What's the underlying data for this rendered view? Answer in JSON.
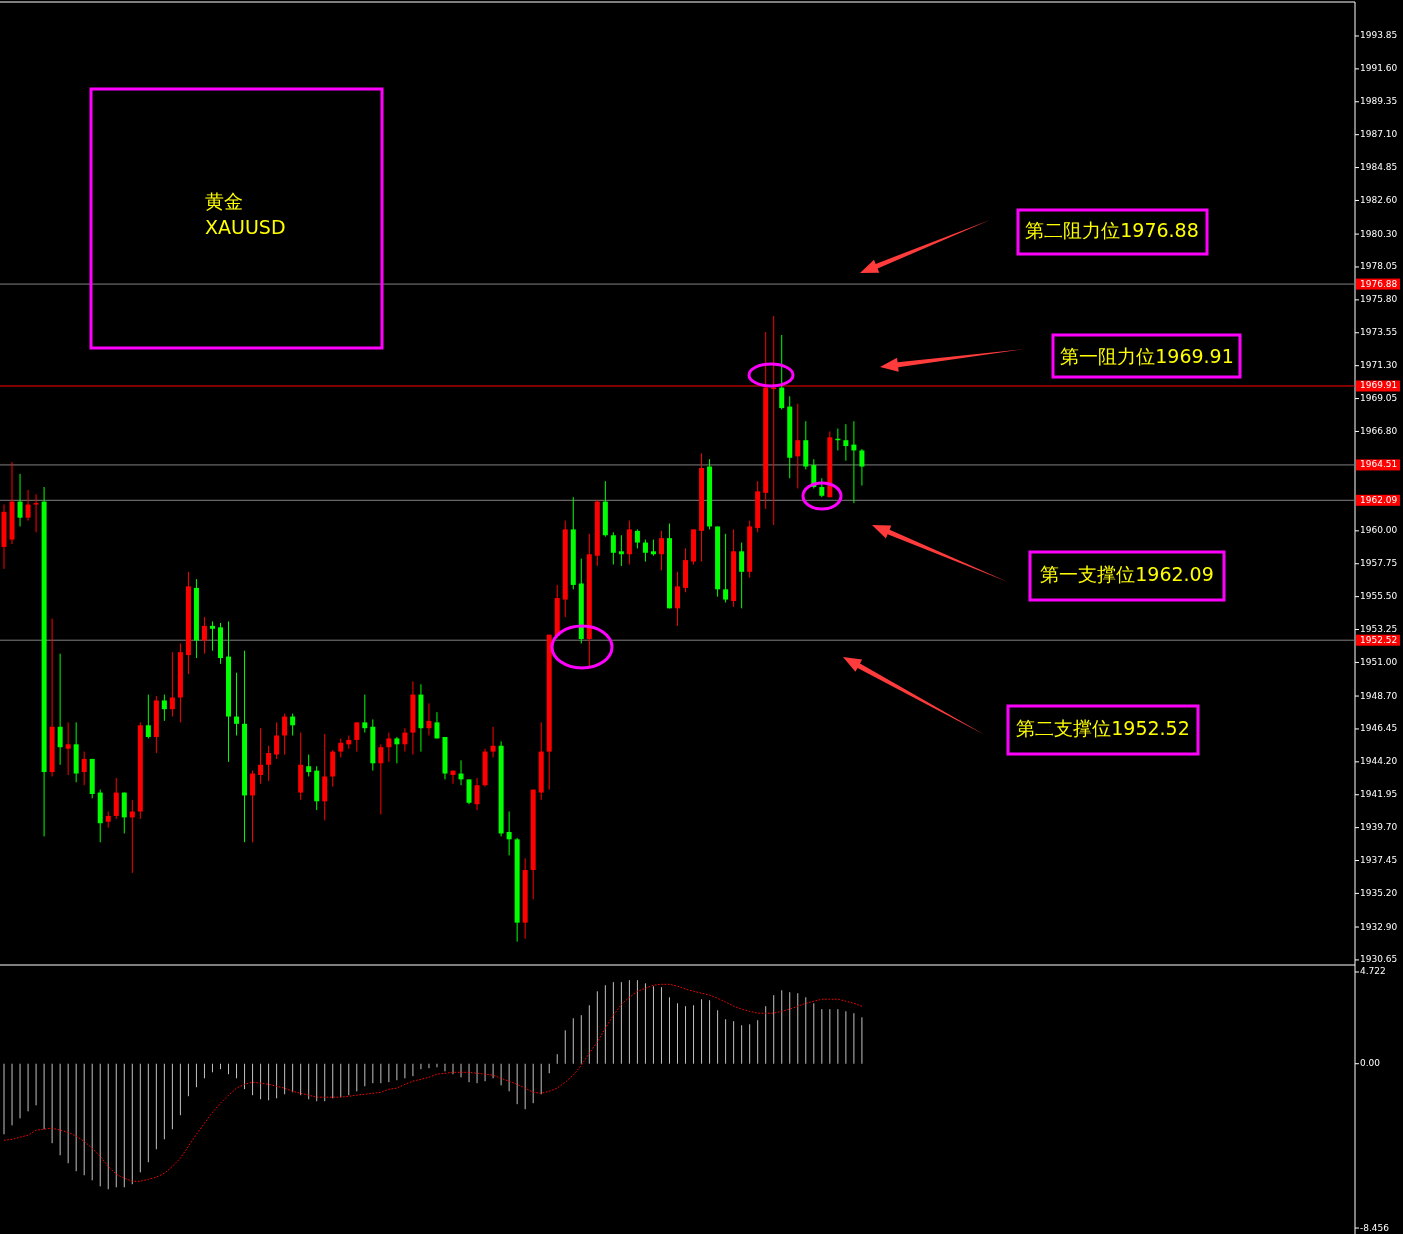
{
  "chart_data": [
    {
      "type": "candlestick",
      "categories": [
        null,
        null,
        null,
        null,
        null,
        null,
        null,
        null,
        null,
        null,
        null,
        null,
        null,
        null,
        null,
        null,
        null,
        null,
        null,
        null,
        null,
        null,
        null,
        null,
        null,
        null,
        null,
        null,
        null,
        null,
        null,
        null,
        null,
        null,
        null,
        null,
        null,
        null,
        null,
        null,
        null,
        null,
        null,
        null,
        null,
        null,
        null,
        null,
        null,
        null,
        null,
        null,
        null,
        null,
        null,
        null,
        null,
        null,
        null,
        null,
        null,
        null,
        null,
        null,
        null,
        null,
        null,
        null,
        null,
        null,
        null,
        null,
        null,
        null,
        null,
        null,
        null,
        null,
        null,
        null,
        null,
        null,
        null,
        null,
        null,
        null,
        null,
        null,
        null,
        null,
        null,
        null,
        null,
        null,
        null,
        null,
        null,
        null,
        null,
        null,
        null,
        null,
        null,
        null,
        null,
        null,
        null,
        null,
        null,
        null,
        null,
        null,
        null,
        null,
        null,
        null,
        null,
        null,
        null,
        null,
        null,
        null,
        null,
        null,
        null,
        null,
        null,
        null,
        null,
        null,
        null,
        null,
        null,
        null,
        null,
        null,
        null,
        null,
        null,
        null,
        null,
        null,
        null,
        null,
        null,
        null,
        null,
        null,
        null,
        null,
        null,
        null,
        null,
        null,
        null,
        null,
        null,
        null,
        null,
        null,
        null,
        null,
        null,
        null,
        null,
        null,
        null,
        null,
        null
      ],
      "ohlc": [
        [
          1958.9,
          1961.8,
          1957.4,
          1961.3
        ],
        [
          1959.4,
          1964.7,
          1959.1,
          1962.0
        ],
        [
          1962.0,
          1963.9,
          1960.3,
          1960.9
        ],
        [
          1960.9,
          1962.8,
          1960.7,
          1961.8
        ],
        [
          1961.8,
          1962.5,
          1959.9,
          1961.9
        ],
        [
          1962.0,
          1963.0,
          1939.1,
          1943.5
        ],
        [
          1943.5,
          1954.0,
          1943.2,
          1946.6
        ],
        [
          1946.6,
          1951.6,
          1944.0,
          1945.2
        ],
        [
          1945.1,
          1946.9,
          1943.3,
          1945.4
        ],
        [
          1945.4,
          1946.9,
          1942.8,
          1943.4
        ],
        [
          1943.5,
          1944.9,
          1942.6,
          1944.4
        ],
        [
          1944.4,
          1944.4,
          1941.7,
          1942.0
        ],
        [
          1942.1,
          1942.3,
          1938.7,
          1940.0
        ],
        [
          1940.1,
          1940.8,
          1939.7,
          1940.5
        ],
        [
          1940.5,
          1943.1,
          1940.3,
          1942.1
        ],
        [
          1942.1,
          1942.1,
          1939.3,
          1940.4
        ],
        [
          1940.4,
          1941.6,
          1936.6,
          1940.8
        ],
        [
          1940.8,
          1946.9,
          1940.3,
          1946.7
        ],
        [
          1946.7,
          1948.8,
          1945.8,
          1945.9
        ],
        [
          1945.9,
          1948.7,
          1944.8,
          1948.4
        ],
        [
          1948.4,
          1948.8,
          1947.0,
          1947.8
        ],
        [
          1947.8,
          1951.7,
          1947.3,
          1948.6
        ],
        [
          1948.6,
          1952.3,
          1946.9,
          1951.7
        ],
        [
          1951.5,
          1957.2,
          1950.2,
          1956.2
        ],
        [
          1956.1,
          1956.7,
          1951.3,
          1952.5
        ],
        [
          1952.5,
          1954.1,
          1951.6,
          1953.5
        ],
        [
          1953.5,
          1953.8,
          1951.8,
          1953.3
        ],
        [
          1953.4,
          1953.7,
          1950.9,
          1951.3
        ],
        [
          1951.4,
          1953.8,
          1944.2,
          1947.3
        ],
        [
          1947.3,
          1950.3,
          1946.0,
          1946.8
        ],
        [
          1946.8,
          1951.8,
          1938.7,
          1941.9
        ],
        [
          1941.9,
          1943.6,
          1938.7,
          1943.4
        ],
        [
          1943.3,
          1946.5,
          1942.7,
          1944.0
        ],
        [
          1944.0,
          1945.3,
          1942.9,
          1944.8
        ],
        [
          1944.7,
          1946.9,
          1944.4,
          1946.0
        ],
        [
          1946.0,
          1947.5,
          1944.7,
          1947.3
        ],
        [
          1947.3,
          1947.5,
          1946.0,
          1946.7
        ],
        [
          1942.1,
          1946.2,
          1941.6,
          1944.0
        ],
        [
          1943.9,
          1944.7,
          1943.2,
          1943.5
        ],
        [
          1943.6,
          1943.9,
          1940.9,
          1941.5
        ],
        [
          1941.5,
          1946.1,
          1940.2,
          1943.2
        ],
        [
          1943.2,
          1945.0,
          1942.5,
          1944.9
        ],
        [
          1944.9,
          1945.8,
          1944.5,
          1945.5
        ],
        [
          1945.4,
          1946.0,
          1945.1,
          1945.7
        ],
        [
          1945.7,
          1946.9,
          1944.9,
          1946.9
        ],
        [
          1946.9,
          1948.8,
          1946.2,
          1946.5
        ],
        [
          1946.6,
          1947.1,
          1943.6,
          1944.1
        ],
        [
          1944.1,
          1945.4,
          1940.6,
          1945.2
        ],
        [
          1945.2,
          1946.2,
          1944.2,
          1945.8
        ],
        [
          1945.8,
          1945.9,
          1944.1,
          1945.4
        ],
        [
          1945.4,
          1946.5,
          1944.9,
          1946.2
        ],
        [
          1946.2,
          1949.7,
          1944.7,
          1948.8
        ],
        [
          1948.8,
          1949.5,
          1944.9,
          1946.5
        ],
        [
          1946.5,
          1948.2,
          1946.0,
          1947.0
        ],
        [
          1946.9,
          1947.6,
          1945.8,
          1945.8
        ],
        [
          1945.9,
          1945.9,
          1943.0,
          1943.4
        ],
        [
          1943.3,
          1943.6,
          1942.7,
          1943.6
        ],
        [
          1943.4,
          1944.3,
          1942.6,
          1943.0
        ],
        [
          1943.0,
          1943.0,
          1941.3,
          1941.4
        ],
        [
          1941.3,
          1943.1,
          1940.9,
          1942.6
        ],
        [
          1942.6,
          1945.1,
          1942.5,
          1944.9
        ],
        [
          1944.9,
          1946.6,
          1944.5,
          1945.3
        ],
        [
          1945.3,
          1945.6,
          1939.1,
          1939.3
        ],
        [
          1939.4,
          1940.8,
          1937.8,
          1938.9
        ],
        [
          1938.9,
          1939.0,
          1931.9,
          1933.2
        ],
        [
          1933.2,
          1937.6,
          1932.1,
          1936.8
        ],
        [
          1936.8,
          1942.3,
          1934.8,
          1942.3
        ],
        [
          1942.1,
          1946.9,
          1941.6,
          1944.9
        ],
        [
          1944.9,
          1952.9,
          1942.3,
          1952.9
        ],
        [
          1952.8,
          1956.3,
          1952.7,
          1955.4
        ],
        [
          1955.3,
          1960.7,
          1954.1,
          1960.1
        ],
        [
          1960.1,
          1962.3,
          1956.0,
          1956.3
        ],
        [
          1956.4,
          1958.1,
          1952.3,
          1952.6
        ],
        [
          1952.6,
          1959.8,
          1950.6,
          1958.4
        ],
        [
          1958.3,
          1962.1,
          1957.6,
          1962.0
        ],
        [
          1962.0,
          1963.4,
          1959.6,
          1959.7
        ],
        [
          1959.7,
          1959.9,
          1957.7,
          1958.5
        ],
        [
          1958.6,
          1959.7,
          1957.6,
          1958.4
        ],
        [
          1958.4,
          1960.7,
          1957.7,
          1960.1
        ],
        [
          1960.0,
          1960.1,
          1958.8,
          1959.2
        ],
        [
          1959.2,
          1959.4,
          1957.9,
          1958.5
        ],
        [
          1958.6,
          1959.4,
          1958.3,
          1958.4
        ],
        [
          1958.4,
          1960.0,
          1957.3,
          1959.5
        ],
        [
          1959.5,
          1960.5,
          1954.7,
          1954.7
        ],
        [
          1954.7,
          1957.2,
          1953.5,
          1956.2
        ],
        [
          1956.1,
          1958.8,
          1955.8,
          1958.0
        ],
        [
          1957.9,
          1960.1,
          1957.7,
          1960.1
        ],
        [
          1960.0,
          1965.3,
          1957.9,
          1964.3
        ],
        [
          1964.4,
          1964.9,
          1960.1,
          1960.3
        ],
        [
          1960.3,
          1960.3,
          1955.5,
          1956.0
        ],
        [
          1956.0,
          1959.8,
          1955.1,
          1955.3
        ],
        [
          1955.2,
          1960.1,
          1954.8,
          1958.6
        ],
        [
          1958.6,
          1959.2,
          1954.7,
          1957.2
        ],
        [
          1957.2,
          1960.7,
          1956.8,
          1960.3
        ],
        [
          1960.2,
          1963.4,
          1959.9,
          1962.7
        ],
        [
          1962.6,
          1973.6,
          1961.5,
          1969.8
        ],
        [
          1969.7,
          1974.7,
          1960.4,
          1969.8
        ],
        [
          1969.8,
          1973.4,
          1968.3,
          1968.4
        ],
        [
          1968.5,
          1969.2,
          1963.6,
          1965.0
        ],
        [
          1965.1,
          1968.7,
          1962.9,
          1966.2
        ],
        [
          1966.2,
          1967.5,
          1964.2,
          1964.4
        ],
        [
          1964.5,
          1964.9,
          1962.9,
          1963.0
        ],
        [
          1963.0,
          1963.6,
          1962.3,
          1962.4
        ],
        [
          1962.3,
          1966.8,
          1962.3,
          1966.4
        ],
        [
          1966.3,
          1967.0,
          1965.5,
          1966.2
        ],
        [
          1966.2,
          1967.3,
          1964.8,
          1965.8
        ],
        [
          1965.9,
          1967.5,
          1961.9,
          1965.5
        ],
        [
          1965.5,
          1965.6,
          1963.1,
          1964.4
        ],
        null,
        null,
        null,
        null,
        null,
        null,
        null,
        null,
        null,
        null,
        null,
        null,
        null,
        null,
        null,
        null,
        null,
        null,
        null,
        null,
        null,
        null,
        null,
        null,
        null,
        null,
        null,
        null,
        null,
        null,
        null,
        null,
        null,
        null,
        null,
        null,
        null,
        null,
        null,
        null,
        null,
        null,
        null,
        null,
        null,
        null,
        null,
        null,
        null,
        null,
        null,
        null,
        null,
        null,
        null,
        null,
        null,
        null,
        null,
        null,
        null
      ],
      "colors": [
        "#ff0000",
        "#ff0000",
        "#00ff00",
        "#ff0000",
        "#ff0000",
        "#00ff00",
        "#ff0000",
        "#00ff00",
        "#ff0000",
        "#00ff00",
        "#ff0000",
        "#00ff00",
        "#00ff00",
        "#ff0000",
        "#ff0000",
        "#00ff00",
        "#ff0000",
        "#ff0000",
        "#00ff00",
        "#ff0000",
        "#00ff00",
        "#ff0000",
        "#ff0000",
        "#ff0000",
        "#00ff00",
        "#ff0000",
        "#00ff00",
        "#00ff00",
        "#00ff00",
        "#00ff00",
        "#00ff00",
        "#ff0000",
        "#ff0000",
        "#ff0000",
        "#ff0000",
        "#ff0000",
        "#00ff00",
        "#ff0000",
        "#00ff00",
        "#00ff00",
        "#ff0000",
        "#ff0000",
        "#ff0000",
        "#ff0000",
        "#ff0000",
        "#00ff00",
        "#00ff00",
        "#ff0000",
        "#ff0000",
        "#00ff00",
        "#ff0000",
        "#ff0000",
        "#00ff00",
        "#ff0000",
        "#00ff00",
        "#00ff00",
        "#ff0000",
        "#00ff00",
        "#00ff00",
        "#ff0000",
        "#ff0000",
        "#ff0000",
        "#00ff00",
        "#00ff00",
        "#00ff00",
        "#ff0000",
        "#ff0000",
        "#ff0000",
        "#ff0000",
        "#ff0000",
        "#ff0000",
        "#00ff00",
        "#00ff00",
        "#ff0000",
        "#ff0000",
        "#00ff00",
        "#00ff00",
        "#00ff00",
        "#ff0000",
        "#00ff00",
        "#00ff00",
        "#00ff00",
        "#ff0000",
        "#00ff00",
        "#ff0000",
        "#ff0000",
        "#ff0000",
        "#ff0000",
        "#00ff00",
        "#00ff00",
        "#00ff00",
        "#ff0000",
        "#00ff00",
        "#ff0000",
        "#ff0000",
        "#ff0000",
        "#ff0000",
        "#00ff00",
        "#00ff00",
        "#ff0000",
        "#00ff00",
        "#00ff00",
        "#00ff00",
        "#ff0000",
        "#00ff00",
        "#00ff00",
        "#00ff00",
        "#00ff00",
        null,
        null,
        null,
        null,
        null,
        null,
        null,
        null,
        null,
        null,
        null,
        null,
        null,
        null,
        null,
        null,
        null,
        null,
        null,
        null,
        null,
        null,
        null,
        null,
        null,
        null,
        null,
        null,
        null,
        null,
        null,
        null,
        null,
        null,
        null,
        null,
        null,
        null,
        null,
        null,
        null,
        null,
        null,
        null,
        null,
        null,
        null,
        null,
        null,
        null,
        null,
        null,
        null,
        null,
        null,
        null,
        null,
        null,
        null,
        null,
        null
      ],
      "ylim": [
        1930.44,
        1995.97
      ],
      "yticks": [
        1930.65,
        {
          "value": 1932.9,
          "label": "1932.90"
        },
        {
          "value": 1935.2,
          "label": "1935.20"
        },
        1937.45,
        {
          "value": 1939.7,
          "label": "1939.70"
        },
        1941.95,
        {
          "value": 1944.2,
          "label": "1944.20"
        },
        1946.45,
        {
          "value": 1948.7,
          "label": "1948.70"
        },
        {
          "value": 1951,
          "label": "1951.00"
        },
        1953.25,
        {
          "value": 1955.5,
          "label": "1955.50"
        },
        1957.75,
        {
          "value": 1960,
          "label": "1960.00"
        },
        {
          "value": 1966.8,
          "label": "1966.80"
        },
        1969.05,
        {
          "value": 1971.3,
          "label": "1971.30"
        },
        1973.55,
        {
          "value": 1975.8,
          "label": "1975.80"
        },
        1978.05,
        {
          "value": 1980.3,
          "label": "1980.30"
        },
        {
          "value": 1982.6,
          "label": "1982.60"
        },
        1984.85,
        {
          "value": 1987.1,
          "label": "1987.10"
        },
        1989.35,
        {
          "value": 1991.6,
          "label": "1991.60"
        },
        1993.85
      ],
      "ref_lines": [
        {
          "axis": "y",
          "value": 1976.88,
          "label": "1976.88",
          "color": "#808080"
        },
        {
          "axis": "y",
          "value": 1969.91,
          "label": "1969.91",
          "color": "#ff0000"
        },
        {
          "axis": "y",
          "value": 1964.51,
          "label": "1964.51",
          "color": "#808080"
        },
        {
          "axis": "y",
          "value": 1962.09,
          "label": "1962.09",
          "color": "#808080"
        },
        {
          "axis": "y",
          "value": 1952.52,
          "label": "1952.52",
          "color": "#808080"
        }
      ],
      "annotations": [
        "黄金",
        "XAUUSD",
        "第二阻力位1976.88",
        "第一阻力位1969.91",
        "第一支撑位1962.09",
        "第二支撑位1952.52"
      ]
    },
    {
      "type": "bar",
      "categories": [
        null,
        null,
        null,
        null,
        null,
        null,
        null,
        null,
        null,
        null,
        null,
        null,
        null,
        null,
        null,
        null,
        null,
        null,
        null,
        null,
        null,
        null,
        null,
        null,
        null,
        null,
        null,
        null,
        null,
        null,
        null,
        null,
        null,
        null,
        null,
        null,
        null,
        null,
        null,
        null,
        null,
        null,
        null,
        null,
        null,
        null,
        null,
        null,
        null,
        null,
        null,
        null,
        null,
        null,
        null,
        null,
        null,
        null,
        null,
        null,
        null,
        null,
        null,
        null,
        null,
        null,
        null,
        null,
        null,
        null,
        null,
        null,
        null,
        null,
        null,
        null,
        null,
        null,
        null,
        null,
        null,
        null,
        null,
        null,
        null,
        null,
        null,
        null,
        null,
        null,
        null,
        null,
        null,
        null,
        null,
        null,
        null,
        null,
        null,
        null,
        null,
        null,
        null,
        null,
        null,
        null,
        null,
        null,
        null,
        null,
        null,
        null,
        null,
        null,
        null,
        null,
        null,
        null,
        null,
        null,
        null,
        null,
        null,
        null,
        null,
        null,
        null,
        null,
        null,
        null,
        null,
        null,
        null,
        null,
        null,
        null,
        null,
        null,
        null,
        null,
        null,
        null,
        null,
        null,
        null,
        null,
        null,
        null,
        null,
        null,
        null,
        null,
        null,
        null,
        null,
        null,
        null,
        null,
        null,
        null,
        null,
        null,
        null,
        null,
        null,
        null,
        null,
        null,
        null
      ],
      "series": [
        {
          "type": "bar",
          "color": "#c0c0c0",
          "values": [
            -3.63,
            -3.17,
            -2.81,
            -2.45,
            -2.14,
            -3.37,
            -4.09,
            -4.71,
            -5.12,
            -5.53,
            -5.74,
            -6.0,
            -6.31,
            -6.46,
            -6.36,
            -6.36,
            -6.2,
            -5.59,
            -5.07,
            -4.4,
            -3.89,
            -3.37,
            -2.65,
            -1.67,
            -1.21,
            -0.75,
            -0.44,
            -0.28,
            -0.54,
            -0.75,
            -1.31,
            -1.62,
            -1.83,
            -1.88,
            -1.78,
            -1.57,
            -1.47,
            -1.62,
            -1.83,
            -1.93,
            -1.93,
            -1.78,
            -1.72,
            -1.62,
            -1.42,
            -1.16,
            -1.0,
            -1.0,
            -0.95,
            -0.85,
            -0.75,
            -0.64,
            -0.28,
            -0.23,
            -0.18,
            -0.39,
            -0.54,
            -0.7,
            -0.95,
            -1.0,
            -0.9,
            -0.75,
            -1.11,
            -1.42,
            -2.08,
            -2.34,
            -2.03,
            -1.57,
            -0.49,
            0.49,
            1.72,
            2.34,
            2.5,
            3.01,
            3.73,
            4.04,
            4.2,
            4.2,
            4.3,
            4.3,
            4.14,
            3.99,
            3.94,
            3.42,
            3.11,
            2.96,
            3.01,
            3.32,
            3.27,
            2.75,
            2.29,
            2.19,
            1.98,
            2.03,
            2.24,
            2.96,
            3.53,
            3.78,
            3.68,
            3.63,
            3.42,
            3.11,
            2.81,
            2.81,
            2.81,
            2.7,
            2.6,
            2.39,
            null,
            null,
            null,
            null,
            null,
            null,
            null,
            null,
            null,
            null,
            null,
            null,
            null,
            null,
            null,
            null,
            null,
            null,
            null,
            null,
            null,
            null,
            null,
            null,
            null,
            null,
            null,
            null,
            null,
            null,
            null,
            null,
            null,
            null,
            null,
            null,
            null,
            null,
            null,
            null,
            null,
            null,
            null,
            null,
            null,
            null,
            null,
            null,
            null,
            null,
            null,
            null,
            null,
            null,
            null,
            null,
            null,
            null,
            null,
            null,
            null
          ]
        },
        {
          "type": "line",
          "color": "#ff0000",
          "line_style": "dotted",
          "values": [
            -3.94,
            -3.89,
            -3.78,
            -3.68,
            -3.42,
            -3.37,
            -3.32,
            -3.42,
            -3.53,
            -3.73,
            -3.99,
            -4.35,
            -4.76,
            -5.28,
            -5.69,
            -5.89,
            -6.05,
            -6.05,
            -5.95,
            -5.84,
            -5.64,
            -5.28,
            -4.86,
            -4.25,
            -3.63,
            -3.06,
            -2.5,
            -2.03,
            -1.62,
            -1.26,
            -1.06,
            -0.95,
            -1.0,
            -1.06,
            -1.16,
            -1.26,
            -1.42,
            -1.52,
            -1.62,
            -1.72,
            -1.72,
            -1.72,
            -1.72,
            -1.67,
            -1.62,
            -1.57,
            -1.52,
            -1.47,
            -1.31,
            -1.26,
            -1.06,
            -0.9,
            -0.8,
            -0.7,
            -0.54,
            -0.49,
            -0.44,
            -0.44,
            -0.44,
            -0.49,
            -0.54,
            -0.59,
            -0.75,
            -0.9,
            -1.06,
            -1.26,
            -1.47,
            -1.52,
            -1.42,
            -1.26,
            -0.95,
            -0.59,
            -0.08,
            0.54,
            1.11,
            1.83,
            2.5,
            3.06,
            3.42,
            3.73,
            3.89,
            4.04,
            4.09,
            4.09,
            3.99,
            3.84,
            3.73,
            3.63,
            3.53,
            3.37,
            3.17,
            2.96,
            2.81,
            2.7,
            2.6,
            2.6,
            2.6,
            2.7,
            2.81,
            2.96,
            3.11,
            3.22,
            3.32,
            3.32,
            3.32,
            3.22,
            3.11,
            2.96,
            null,
            null,
            null,
            null,
            null,
            null,
            null,
            null,
            null,
            null,
            null,
            null,
            null,
            null,
            null,
            null,
            null,
            null,
            null,
            null,
            null,
            null,
            null,
            null,
            null,
            null,
            null,
            null,
            null,
            null,
            null,
            null,
            null,
            null,
            null,
            null,
            null,
            null,
            null,
            null,
            null,
            null,
            null,
            null,
            null,
            null,
            null,
            null,
            null,
            null,
            null,
            null,
            null,
            null,
            null,
            null,
            null,
            null,
            null,
            null,
            null
          ]
        }
      ],
      "ylim": [
        -8.66,
        5.03
      ],
      "yticks": [
        4.722,
        {
          "value": 0,
          "label": "0.00"
        },
        -8.456
      ]
    }
  ]
}
